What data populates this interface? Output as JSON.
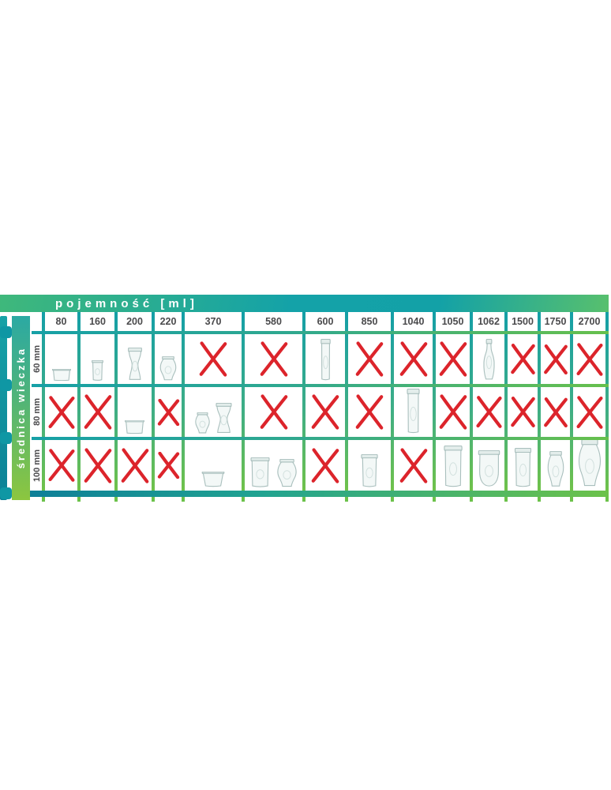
{
  "title_bar": {
    "label": "pojemność [ml]"
  },
  "sidebar": {
    "label": "średnica wieczka"
  },
  "columns": [
    "80",
    "160",
    "200",
    "220",
    "370",
    "580",
    "600",
    "850",
    "1040",
    "1050",
    "1062",
    "1500",
    "1750",
    "2700"
  ],
  "rows": [
    {
      "label": "60 mm",
      "cells": [
        {
          "state": "jar",
          "jars": [
            {
              "type": "flat",
              "w": 26,
              "h": 15
            }
          ]
        },
        {
          "state": "jar",
          "jars": [
            {
              "type": "cup",
              "w": 19,
              "h": 26
            }
          ]
        },
        {
          "state": "jar",
          "jars": [
            {
              "type": "hourglass",
              "w": 22,
              "h": 42
            }
          ]
        },
        {
          "state": "jar",
          "jars": [
            {
              "type": "tulip",
              "w": 26,
              "h": 31
            }
          ]
        },
        {
          "state": "x"
        },
        {
          "state": "x"
        },
        {
          "state": "jar",
          "jars": [
            {
              "type": "slim",
              "w": 19,
              "h": 53
            }
          ]
        },
        {
          "state": "x"
        },
        {
          "state": "x"
        },
        {
          "state": "x"
        },
        {
          "state": "jar",
          "jars": [
            {
              "type": "bottle",
              "w": 21,
              "h": 53
            }
          ]
        },
        {
          "state": "x"
        },
        {
          "state": "x"
        },
        {
          "state": "x"
        }
      ]
    },
    {
      "label": "80 mm",
      "cells": [
        {
          "state": "x"
        },
        {
          "state": "x"
        },
        {
          "state": "jar",
          "jars": [
            {
              "type": "flat",
              "w": 27,
              "h": 17
            }
          ]
        },
        {
          "state": "x"
        },
        {
          "state": "jar",
          "jars": [
            {
              "type": "tulip",
              "w": 23,
              "h": 27
            },
            {
              "type": "hourglass",
              "w": 25,
              "h": 39
            }
          ]
        },
        {
          "state": "x"
        },
        {
          "state": "x"
        },
        {
          "state": "x"
        },
        {
          "state": "jar",
          "jars": [
            {
              "type": "slim",
              "w": 25,
              "h": 57
            }
          ]
        },
        {
          "state": "x"
        },
        {
          "state": "x"
        },
        {
          "state": "x"
        },
        {
          "state": "x"
        },
        {
          "state": "x"
        }
      ]
    },
    {
      "label": "100 mm",
      "cells": [
        {
          "state": "x"
        },
        {
          "state": "x"
        },
        {
          "state": "x"
        },
        {
          "state": "x"
        },
        {
          "state": "jar",
          "jars": [
            {
              "type": "bowl",
              "w": 30,
              "h": 20
            }
          ]
        },
        {
          "state": "jar",
          "jars": [
            {
              "type": "cyl",
              "w": 31,
              "h": 38
            },
            {
              "type": "tulip",
              "w": 31,
              "h": 36
            }
          ]
        },
        {
          "state": "x"
        },
        {
          "state": "jar",
          "jars": [
            {
              "type": "cup",
              "w": 28,
              "h": 42
            }
          ]
        },
        {
          "state": "x"
        },
        {
          "state": "jar",
          "jars": [
            {
              "type": "cyl",
              "w": 30,
              "h": 53
            }
          ]
        },
        {
          "state": "jar",
          "jars": [
            {
              "type": "mold",
              "w": 33,
              "h": 47
            }
          ]
        },
        {
          "state": "jar",
          "jars": [
            {
              "type": "cyl",
              "w": 27,
              "h": 50
            }
          ]
        },
        {
          "state": "jar",
          "jars": [
            {
              "type": "tulip",
              "w": 26,
              "h": 46
            }
          ]
        },
        {
          "state": "jar",
          "jars": [
            {
              "type": "tulip",
              "w": 36,
              "h": 61
            }
          ]
        }
      ]
    }
  ],
  "colors": {
    "red_x": "#dc242b",
    "teal": "#12a0a7",
    "green": "#6cc24a",
    "light_green": "#8cc63f",
    "text_dark": "#4a4a4c"
  },
  "icons": {
    "unavailable": "x-mark-icon",
    "available": "jar-photo-icon"
  },
  "chart_data": {
    "type": "table",
    "title": "pojemność [ml]",
    "row_axis_label": "średnica wieczka",
    "columns": [
      80,
      160,
      200,
      220,
      370,
      580,
      600,
      850,
      1040,
      1050,
      1062,
      1500,
      1750,
      2700
    ],
    "rows": [
      "60 mm",
      "80 mm",
      "100 mm"
    ],
    "fits": [
      [
        true,
        true,
        true,
        true,
        false,
        false,
        true,
        false,
        false,
        false,
        true,
        false,
        false,
        false
      ],
      [
        false,
        false,
        true,
        false,
        true,
        false,
        false,
        false,
        true,
        false,
        false,
        false,
        false,
        false
      ],
      [
        false,
        false,
        false,
        false,
        true,
        true,
        false,
        true,
        false,
        true,
        true,
        true,
        true,
        true
      ]
    ]
  }
}
